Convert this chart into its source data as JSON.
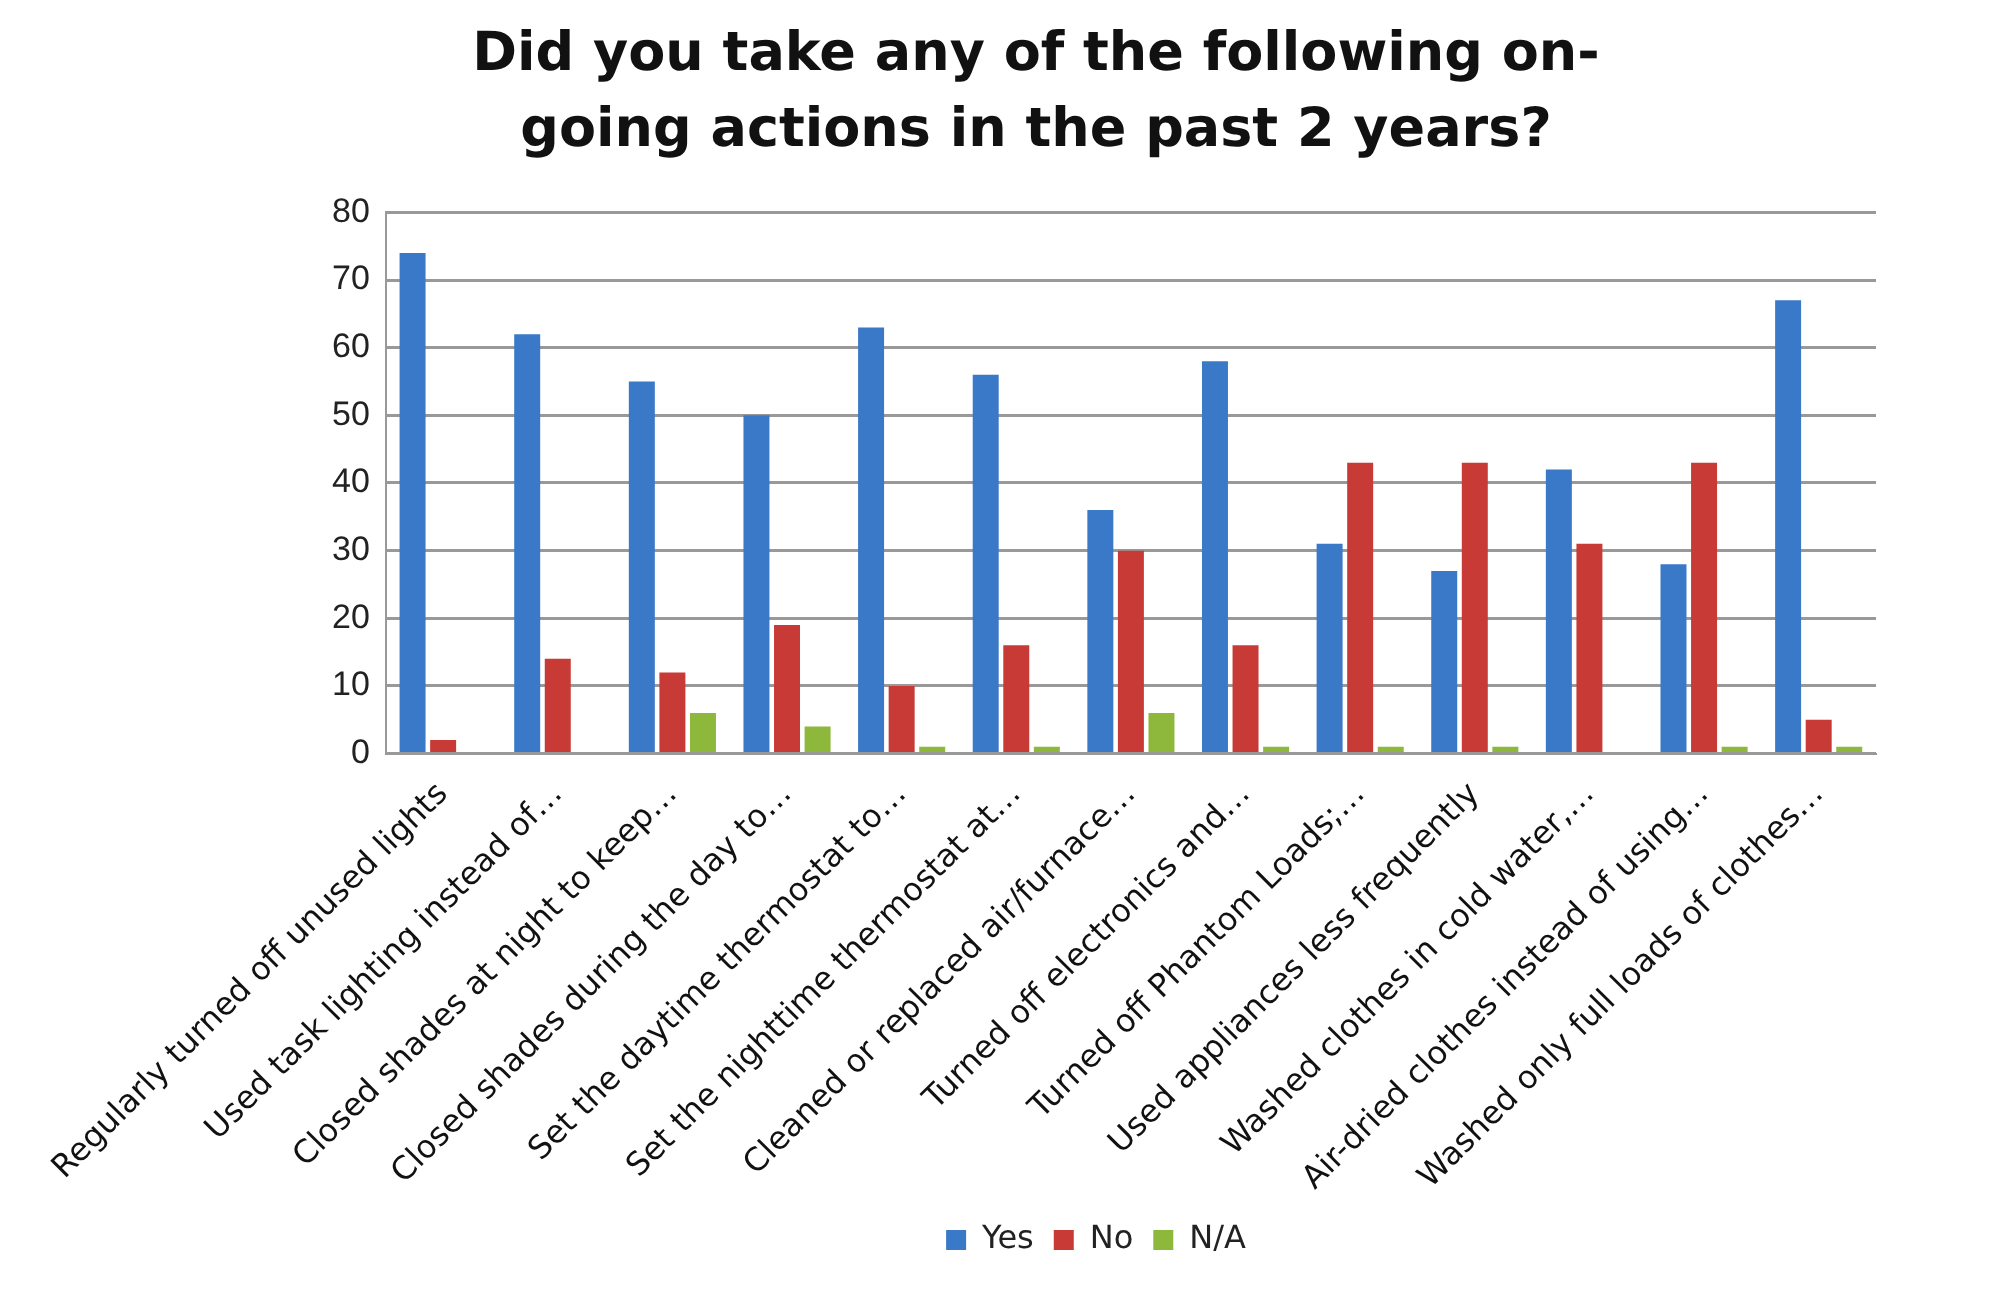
{
  "chart_data": {
    "type": "bar",
    "title": "Did you take any of the following on-going actions in the past 2 years?",
    "categories": [
      "Regularly turned off unused lights",
      "Used task lighting instead of…",
      "Closed shades at night to keep…",
      "Closed shades during the day to…",
      "Set the daytime thermostat to…",
      "Set the nighttime thermostat at…",
      "Cleaned or replaced air/furnace…",
      "Turned off electronics and…",
      "Turned off Phantom Loads;…",
      "Used appliances less frequently",
      "Washed clothes in cold water,…",
      "Air-dried clothes instead of using…",
      "Washed only full loads of clothes…"
    ],
    "series": [
      {
        "name": "Yes",
        "color": "#3a78c8",
        "values": [
          74,
          62,
          55,
          50,
          63,
          56,
          36,
          58,
          31,
          27,
          42,
          28,
          67
        ]
      },
      {
        "name": "No",
        "color": "#c83a36",
        "values": [
          2,
          14,
          12,
          19,
          10,
          16,
          30,
          16,
          43,
          43,
          31,
          43,
          5
        ]
      },
      {
        "name": "N/A",
        "color": "#8db83c",
        "values": [
          0,
          0,
          6,
          4,
          1,
          1,
          6,
          1,
          1,
          1,
          0,
          1,
          1
        ]
      }
    ],
    "ylim": [
      0,
      80
    ],
    "yticks": [
      0,
      10,
      20,
      30,
      40,
      50,
      60,
      70,
      80
    ],
    "grid": "y",
    "legend": "bottom"
  }
}
